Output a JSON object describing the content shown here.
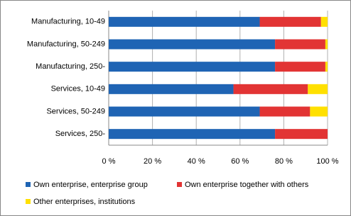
{
  "chart_data": {
    "type": "stacked-barh",
    "categories": [
      "Manufacturing, 10-49",
      "Manufacturing, 50-249",
      "Manufacturing, 250-",
      "Services, 10-49",
      "Services, 50-249",
      "Services, 250-"
    ],
    "series": [
      {
        "name": "Own enterprise, enterprise group",
        "color": "#1f64b4",
        "values": [
          69,
          76,
          76,
          57,
          69,
          76
        ]
      },
      {
        "name": "Own enterprise together with others",
        "color": "#e23434",
        "values": [
          28,
          23,
          23,
          34,
          23,
          24
        ]
      },
      {
        "name": "Other enterprises, institutions",
        "color": "#ffe000",
        "values": [
          3,
          1,
          1,
          9,
          8,
          0
        ]
      }
    ],
    "xlim": [
      0,
      100
    ],
    "xticks": [
      {
        "value": 0,
        "label": "0 %"
      },
      {
        "value": 20,
        "label": "20 %"
      },
      {
        "value": 40,
        "label": "40 %"
      },
      {
        "value": 60,
        "label": "60 %"
      },
      {
        "value": 80,
        "label": "80 %"
      },
      {
        "value": 100,
        "label": "100 %"
      }
    ],
    "grid": true,
    "legend": "bottom"
  }
}
